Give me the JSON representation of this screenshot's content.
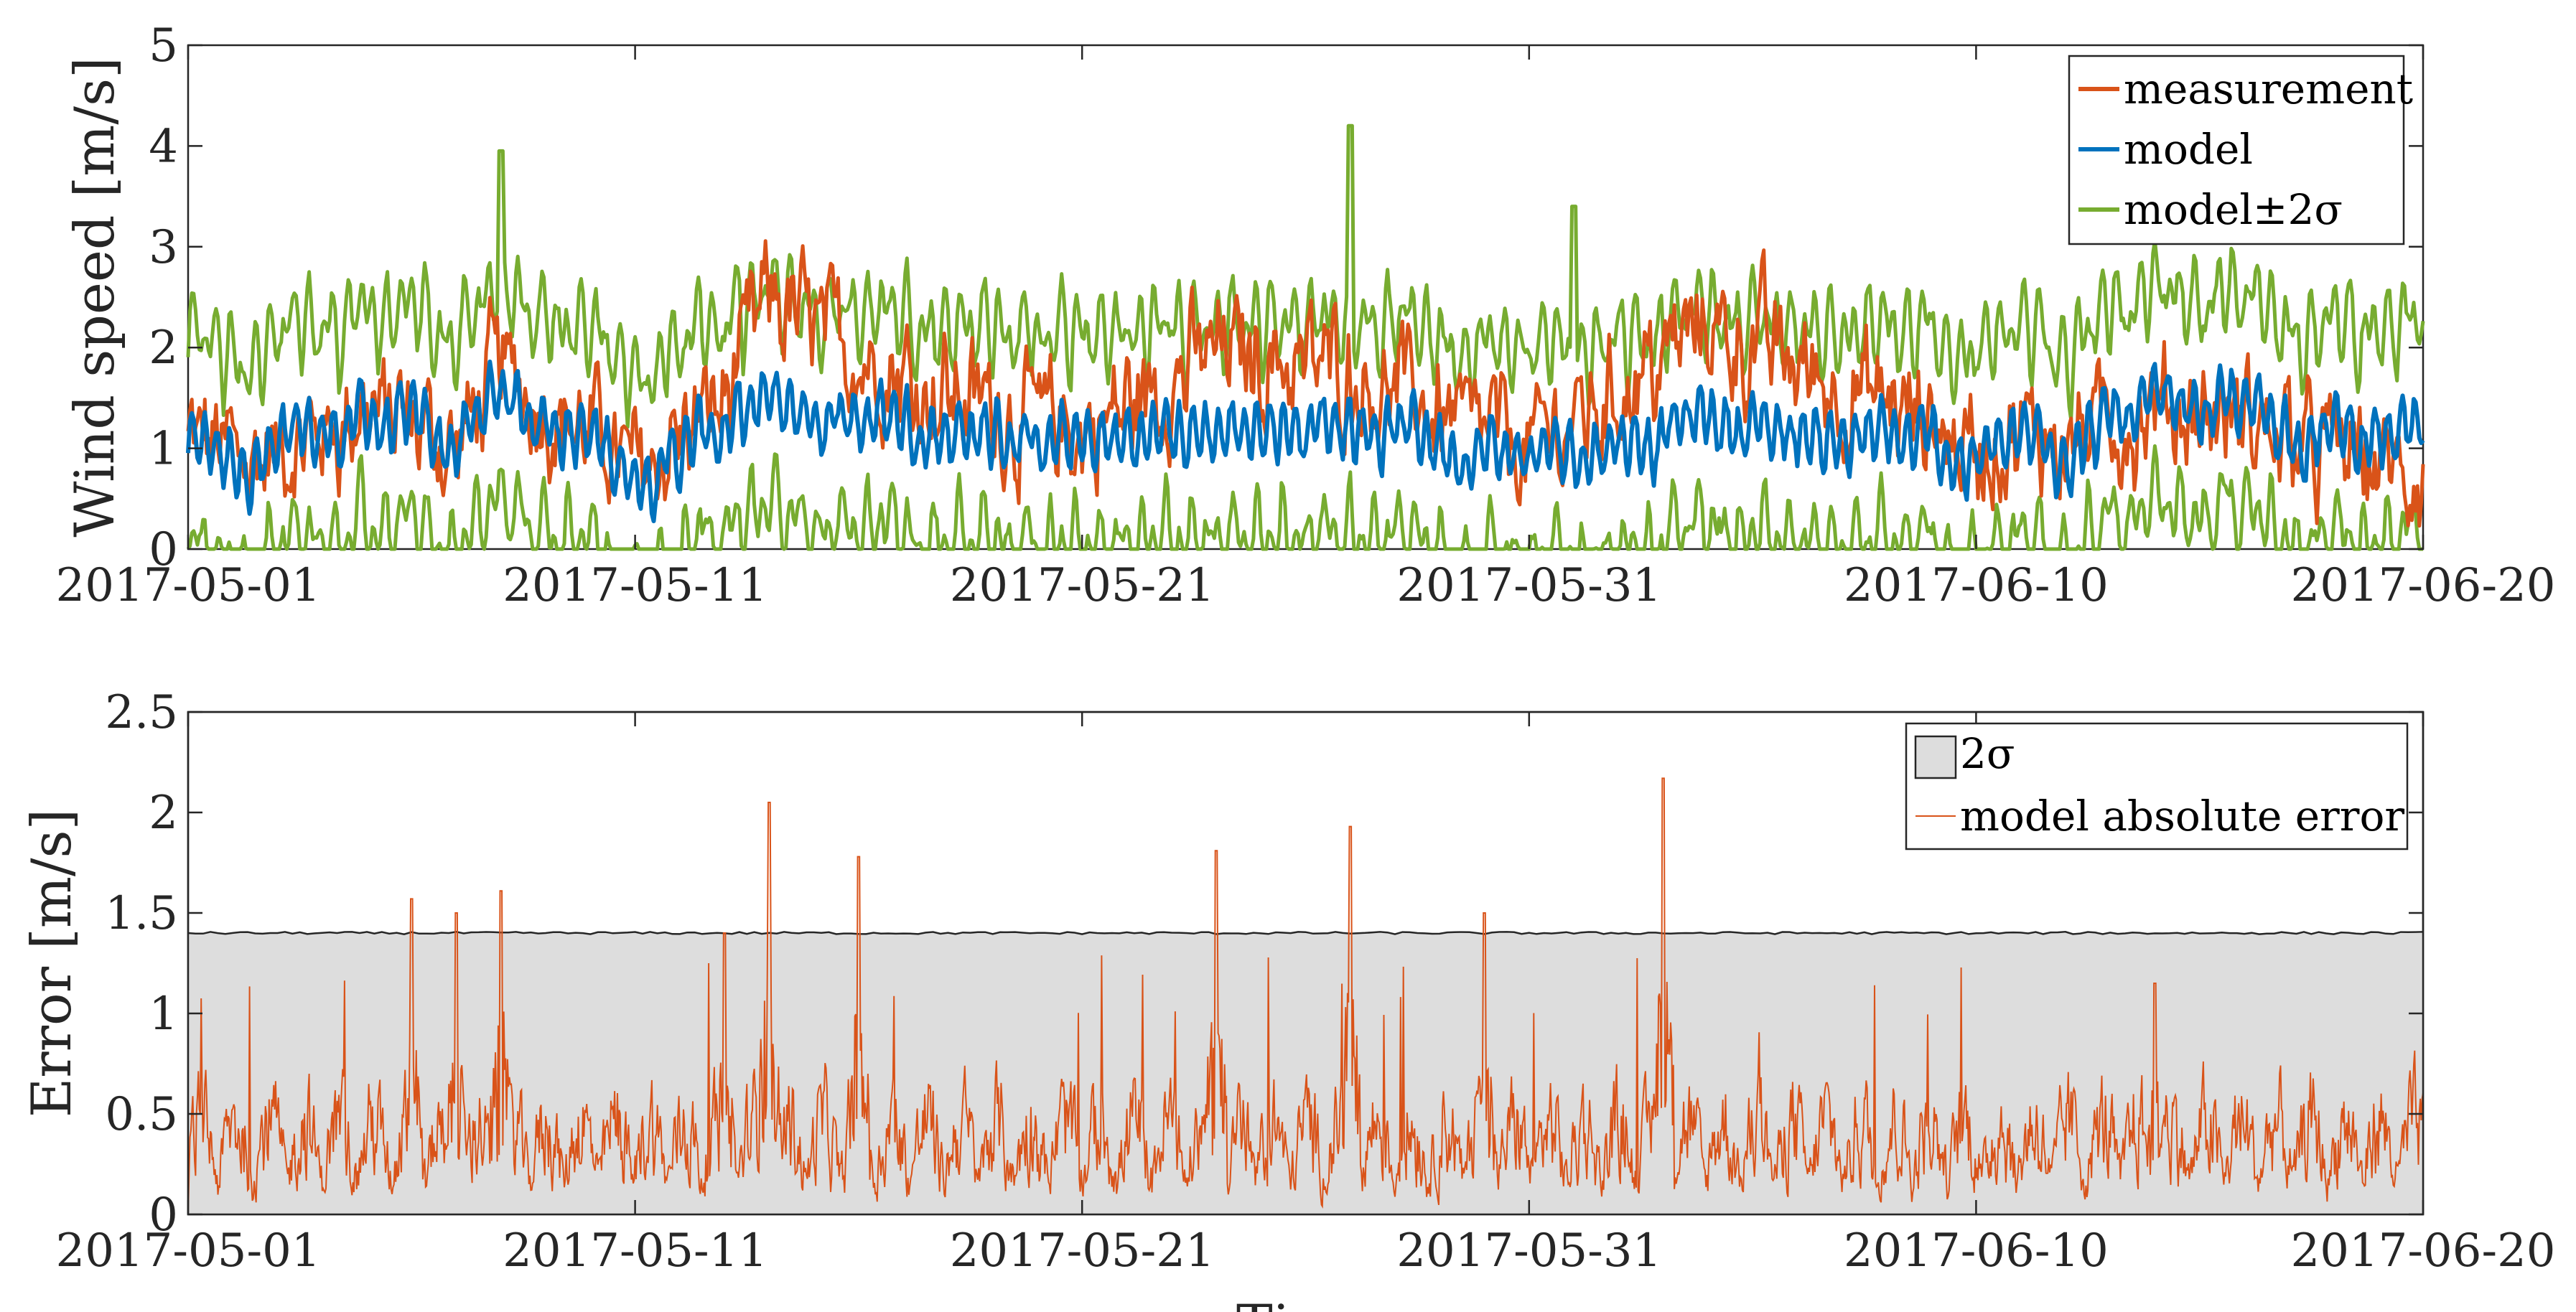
{
  "chart_data": [
    {
      "type": "line",
      "ylabel": "Wind speed [m/s]",
      "xlabel": "",
      "xlim": [
        "2017-05-01",
        "2017-06-20"
      ],
      "ylim": [
        0,
        5
      ],
      "yticks": [
        "0",
        "1",
        "2",
        "3",
        "4",
        "5"
      ],
      "xticks": [
        "2017-05-01",
        "2017-05-11",
        "2017-05-21",
        "2017-05-31",
        "2017-06-10",
        "2017-06-20"
      ],
      "grid": false,
      "legend": "top-right",
      "colors": {
        "measurement": "#D95319",
        "model": "#0072BD",
        "band": "#77AC30"
      },
      "series": [
        {
          "name": "measurement",
          "sampled": [
            {
              "date": "2017-05-01",
              "value": 1.1
            },
            {
              "date": "2017-05-03",
              "value": 0.9
            },
            {
              "date": "2017-05-05",
              "value": 1.5
            },
            {
              "date": "2017-05-07",
              "value": 1.0
            },
            {
              "date": "2017-05-08",
              "value": 2.0
            },
            {
              "date": "2017-05-11",
              "value": 0.8
            },
            {
              "date": "2017-05-13",
              "value": 1.7
            },
            {
              "date": "2017-05-14",
              "value": 3.3
            },
            {
              "date": "2017-05-17",
              "value": 2.1
            },
            {
              "date": "2017-05-21",
              "value": 1.2
            },
            {
              "date": "2017-05-24",
              "value": 2.6
            },
            {
              "date": "2017-05-27",
              "value": 2.2
            },
            {
              "date": "2017-05-31",
              "value": 1.0
            },
            {
              "date": "2017-06-04",
              "value": 3.0
            },
            {
              "date": "2017-06-10",
              "value": 1.1
            },
            {
              "date": "2017-06-15",
              "value": 1.4
            },
            {
              "date": "2017-06-20",
              "value": 0.4
            }
          ]
        },
        {
          "name": "model",
          "sampled": [
            {
              "date": "2017-05-01",
              "value": 1.0
            },
            {
              "date": "2017-05-03",
              "value": 0.9
            },
            {
              "date": "2017-05-05",
              "value": 1.3
            },
            {
              "date": "2017-05-07",
              "value": 1.0
            },
            {
              "date": "2017-05-08",
              "value": 1.6
            },
            {
              "date": "2017-05-11",
              "value": 0.8
            },
            {
              "date": "2017-05-13",
              "value": 1.2
            },
            {
              "date": "2017-05-14",
              "value": 1.4
            },
            {
              "date": "2017-05-17",
              "value": 1.3
            },
            {
              "date": "2017-05-21",
              "value": 1.0
            },
            {
              "date": "2017-05-24",
              "value": 1.2
            },
            {
              "date": "2017-05-27",
              "value": 1.3
            },
            {
              "date": "2017-05-31",
              "value": 0.9
            },
            {
              "date": "2017-06-04",
              "value": 1.3
            },
            {
              "date": "2017-06-10",
              "value": 0.9
            },
            {
              "date": "2017-06-15",
              "value": 1.4
            },
            {
              "date": "2017-06-20",
              "value": 1.0
            }
          ]
        },
        {
          "name": "model±2σ",
          "band_halfwidth": 0.7,
          "peaks": [
            {
              "date": "2017-05-08",
              "value": 3.95
            },
            {
              "date": "2017-05-27",
              "value": 4.2
            },
            {
              "date": "2017-06-01",
              "value": 3.4
            }
          ]
        }
      ]
    },
    {
      "type": "area",
      "ylabel": "Error [m/s]",
      "xlabel": "Time",
      "xlim": [
        "2017-05-01",
        "2017-06-20"
      ],
      "ylim": [
        0,
        2.5
      ],
      "yticks": [
        "0",
        "0.5",
        "1",
        "1.5",
        "2",
        "2.5"
      ],
      "xticks": [
        "2017-05-01",
        "2017-05-11",
        "2017-05-21",
        "2017-05-31",
        "2017-06-10",
        "2017-06-20"
      ],
      "grid": false,
      "legend": "top-right",
      "colors": {
        "band_fill": "#DDDDDD",
        "error": "#D95319"
      },
      "series": [
        {
          "name": "2σ",
          "value": 1.4
        },
        {
          "name": "model absolute error",
          "typical_range": [
            0,
            0.9
          ],
          "peaks": [
            {
              "date": "2017-05-06",
              "value": 1.57
            },
            {
              "date": "2017-05-07",
              "value": 1.5
            },
            {
              "date": "2017-05-08",
              "value": 1.61
            },
            {
              "date": "2017-05-13",
              "value": 1.4
            },
            {
              "date": "2017-05-14",
              "value": 2.05
            },
            {
              "date": "2017-05-16",
              "value": 1.78
            },
            {
              "date": "2017-05-24",
              "value": 1.81
            },
            {
              "date": "2017-05-27",
              "value": 1.93
            },
            {
              "date": "2017-05-30",
              "value": 1.5
            },
            {
              "date": "2017-06-03",
              "value": 2.17
            },
            {
              "date": "2017-06-14",
              "value": 1.15
            }
          ]
        }
      ]
    }
  ]
}
